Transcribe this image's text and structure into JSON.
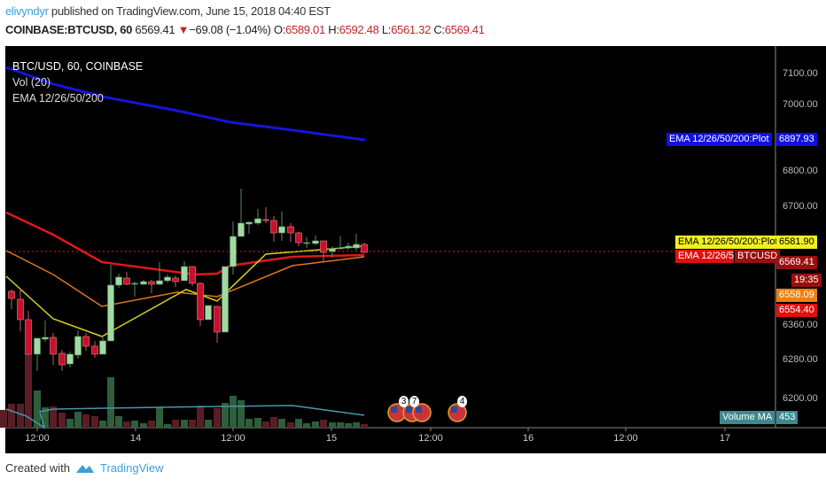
{
  "header": {
    "user": "elivyndyr",
    "published": "published on TradingView.com, June 15, 2018 04:40 EST",
    "symbol": "COINBASE:BTCUSD, 60",
    "last": "6569.41",
    "change": "−69.08 (−1.04%)",
    "o_label": "O:",
    "o": "6589.01",
    "h_label": "H:",
    "h": "6592.48",
    "l_label": "L:",
    "l": "6561.32",
    "c_label": "C:",
    "c": "6569.41"
  },
  "legend": {
    "main": "BTC/USD, 60, COINBASE",
    "vol": "Vol (20)",
    "ema": "EMA 12/26/50/200"
  },
  "price_scale": [
    "7100.00",
    "7000.00",
    "6800.00",
    "6700.00",
    "6360.00",
    "6280.00",
    "6200.00"
  ],
  "tags": {
    "ema200_label": "EMA 12/26/50/200:Plot",
    "ema200_value": "6897.93",
    "ema12_label": "EMA 12/26/50/200:Plot",
    "ema12_value": "6581.90",
    "ema50_label": "EMA 12/26/50/200:Plot",
    "price_symbol": "BTCUSD",
    "price_value": "6569.41",
    "countdown": "19:35",
    "ema26_value": "6558.09",
    "ema50_value": "6554.40",
    "volma_label": "Volume MA",
    "volma_value": "453"
  },
  "events": {
    "badge1": "3",
    "badge2": "7",
    "badge3": "4"
  },
  "time_axis": [
    "12:00",
    "14",
    "12:00",
    "15",
    "12:00",
    "16",
    "12:00",
    "17"
  ],
  "footer": {
    "created": "Created with",
    "brand": "TradingView"
  },
  "colors": {
    "up": "#a3d9a0",
    "down": "#c8102e",
    "ema200": "#1515d8",
    "ema50": "#e01818",
    "ema26": "#e07818",
    "ema12": "#d8d020"
  }
}
